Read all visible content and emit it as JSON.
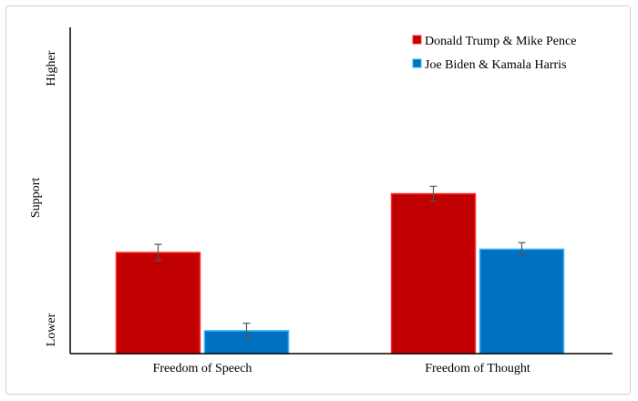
{
  "chart_data": {
    "type": "bar",
    "title": "",
    "xlabel": "",
    "ylabel": "Support",
    "y_low_label": "Lower",
    "y_high_label": "Higher",
    "ylim": [
      0,
      100
    ],
    "categories": [
      "Freedom of Speech",
      "Freedom of Thought"
    ],
    "series": [
      {
        "name": "Donald Trump & Mike Pence",
        "color": "#c00000",
        "edge": "#ff3030",
        "values": [
          31,
          49
        ],
        "errors": [
          2.5,
          2.3
        ]
      },
      {
        "name": "Joe Biden & Kamala Harris",
        "color": "#0070c0",
        "edge": "#33b5ff",
        "values": [
          7,
          32
        ],
        "errors": [
          2.3,
          2.0
        ]
      }
    ],
    "legend_position": "top-right",
    "grid": false
  }
}
